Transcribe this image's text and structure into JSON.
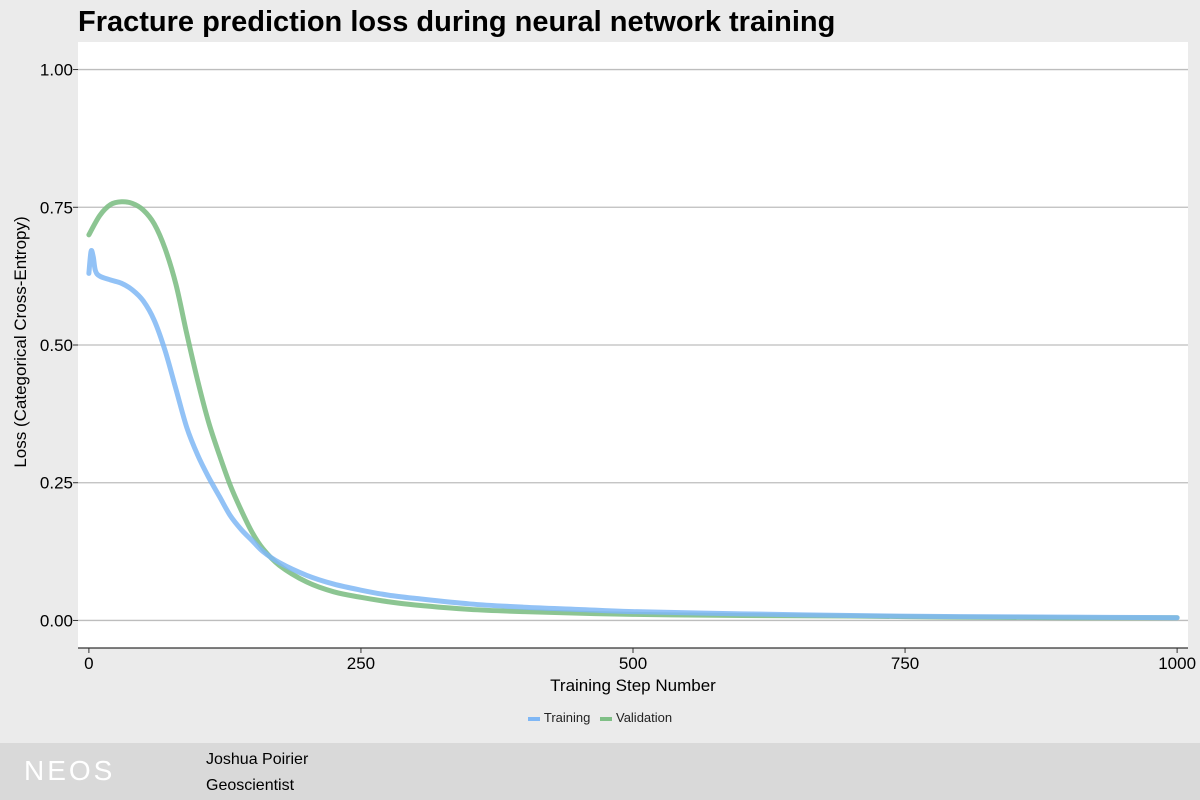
{
  "title": "Fracture prediction loss during neural network training",
  "footer": {
    "logo": "NEOS",
    "name": "Joshua Poirier",
    "role": "Geoscientist"
  },
  "chart_data": {
    "type": "line",
    "title": "Fracture prediction loss during neural network training",
    "xlabel": "Training Step Number",
    "ylabel": "Loss (Categorical Cross-Entropy)",
    "xlim": [
      -10,
      1010
    ],
    "ylim": [
      -0.05,
      1.05
    ],
    "x_ticks": [
      0,
      250,
      500,
      750,
      1000
    ],
    "x_tick_labels": [
      "0",
      "250",
      "500",
      "750",
      "1000"
    ],
    "y_ticks": [
      0,
      0.25,
      0.5,
      0.75,
      1.0
    ],
    "y_tick_labels": [
      "0.00",
      "0.25",
      "0.50",
      "0.75",
      "1.00"
    ],
    "grid": "horizontal",
    "legend_position": "bottom",
    "series": [
      {
        "name": "Training",
        "color": "#7fb7f5",
        "x": [
          0,
          2,
          4,
          6,
          10,
          20,
          30,
          40,
          50,
          60,
          70,
          80,
          90,
          100,
          110,
          120,
          130,
          140,
          150,
          160,
          175,
          200,
          225,
          250,
          275,
          300,
          350,
          400,
          450,
          500,
          600,
          700,
          800,
          900,
          1000
        ],
        "y": [
          0.63,
          0.67,
          0.66,
          0.635,
          0.625,
          0.618,
          0.612,
          0.6,
          0.58,
          0.545,
          0.49,
          0.42,
          0.35,
          0.3,
          0.26,
          0.225,
          0.19,
          0.165,
          0.145,
          0.125,
          0.105,
          0.082,
          0.066,
          0.055,
          0.046,
          0.04,
          0.03,
          0.024,
          0.02,
          0.016,
          0.012,
          0.009,
          0.007,
          0.006,
          0.005
        ]
      },
      {
        "name": "Validation",
        "color": "#7fbf86",
        "x": [
          0,
          10,
          20,
          30,
          40,
          50,
          60,
          70,
          80,
          90,
          100,
          110,
          120,
          130,
          140,
          150,
          160,
          175,
          200,
          225,
          250,
          275,
          300,
          350,
          400,
          500,
          600,
          700,
          800,
          900,
          1000
        ],
        "y": [
          0.7,
          0.735,
          0.755,
          0.76,
          0.757,
          0.745,
          0.72,
          0.675,
          0.61,
          0.52,
          0.435,
          0.36,
          0.3,
          0.245,
          0.2,
          0.16,
          0.13,
          0.1,
          0.07,
          0.052,
          0.042,
          0.034,
          0.028,
          0.02,
          0.016,
          0.011,
          0.009,
          0.008,
          0.006,
          0.005,
          0.005
        ]
      }
    ]
  }
}
